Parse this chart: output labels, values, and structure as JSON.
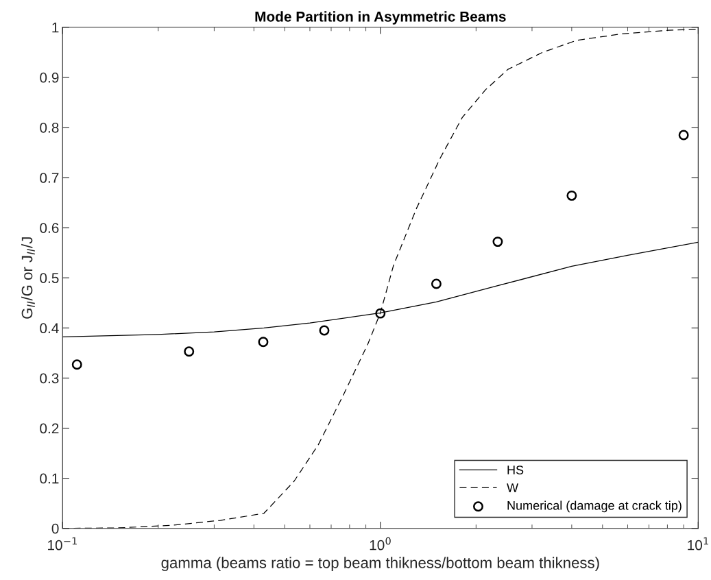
{
  "chart_data": {
    "type": "line",
    "title": "Mode Partition in Asymmetric Beams",
    "xlabel": "gamma (beams ratio = top beam thikness/bottom beam thikness)",
    "ylabel": "G$_{II}$/G or J$_{II}$/J",
    "log": "x",
    "xlim": [
      0.1,
      10
    ],
    "xticks": [
      {
        "value": 0.1,
        "label": "10$^{−1}$"
      },
      {
        "value": 1,
        "label": "10$^{0}$"
      },
      {
        "value": 10,
        "label": "10$^{1}$"
      }
    ],
    "ylim": [
      0,
      1
    ],
    "yticks": [
      0,
      0.1,
      0.2,
      0.3,
      0.4,
      0.5,
      0.6,
      0.7,
      0.8,
      0.9,
      1
    ],
    "grid": false,
    "legend": "bottom right",
    "series": [
      {
        "name": "HS",
        "color": "#000000",
        "line_style": "solid",
        "marker": "none",
        "x": [
          0.1,
          0.2,
          0.3,
          0.43,
          0.6,
          1,
          1.5,
          2.33,
          4,
          6,
          10
        ],
        "values": [
          0.382,
          0.387,
          0.392,
          0.4,
          0.41,
          0.43,
          0.452,
          0.484,
          0.523,
          0.545,
          0.571
        ]
      },
      {
        "name": "W",
        "color": "#000000",
        "line_style": "dashed",
        "marker": "none",
        "x": [
          0.1,
          0.15,
          0.22,
          0.314,
          0.43,
          0.535,
          0.638,
          0.763,
          0.912,
          1,
          1.1,
          1.3,
          1.54,
          1.81,
          2.14,
          2.52,
          3.24,
          4.15,
          5.78,
          8.05,
          10
        ],
        "values": [
          0.0,
          0.001,
          0.006,
          0.016,
          0.03,
          0.094,
          0.167,
          0.265,
          0.367,
          0.43,
          0.525,
          0.639,
          0.738,
          0.82,
          0.875,
          0.916,
          0.95,
          0.974,
          0.987,
          0.994,
          0.996
        ]
      },
      {
        "name": "Numerical (damage at crack tip)",
        "type": "scatter",
        "color": "#000000",
        "marker": "circle",
        "x": [
          0.111,
          0.25,
          0.428,
          0.666,
          1,
          1.5,
          2.34,
          4,
          9
        ],
        "values": [
          0.327,
          0.353,
          0.372,
          0.395,
          0.429,
          0.488,
          0.572,
          0.664,
          0.785
        ]
      }
    ]
  }
}
